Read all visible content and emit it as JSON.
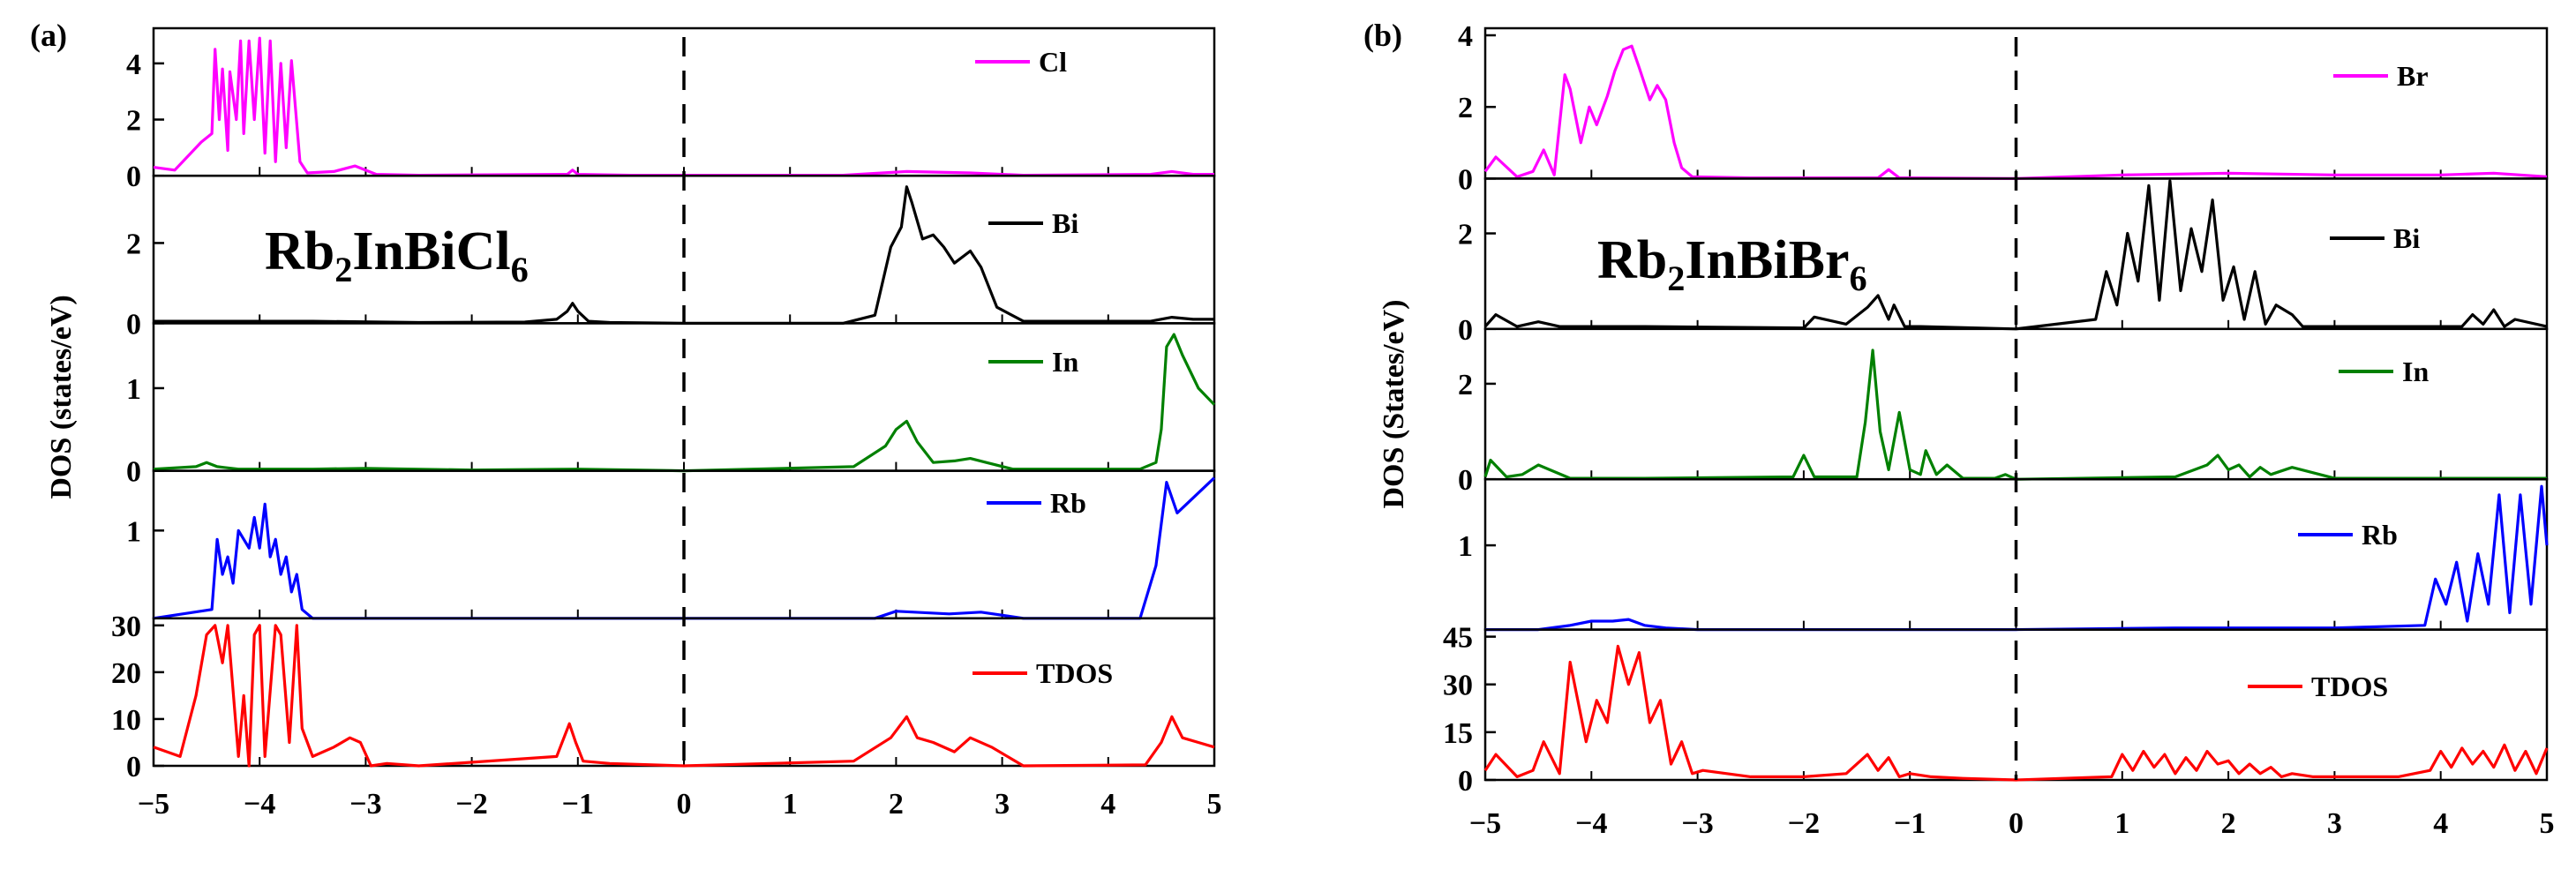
{
  "chart_data": [
    {
      "type": "line",
      "panel_label": "(a)",
      "compound": {
        "base": "Rb",
        "sub1": "2",
        "mid": "InBiCl",
        "sub2": "6"
      },
      "ylabel": "DOS (states/eV)",
      "xlabel": "",
      "xlim": [
        -5,
        5
      ],
      "xticks": [
        "−5",
        "−4",
        "−3",
        "−2",
        "−1",
        "0",
        "1",
        "2",
        "3",
        "4",
        "5"
      ],
      "fermi_level": 0,
      "subplots": [
        {
          "name": "Cl",
          "color": "#ff00ff",
          "ylim": [
            0,
            5
          ],
          "yticks": [
            "0",
            "2",
            "4"
          ],
          "yticks_values": [
            0,
            2,
            4
          ],
          "x": [
            -5,
            -4.8,
            -4.55,
            -4.45,
            -4.42,
            -4.38,
            -4.35,
            -4.3,
            -4.28,
            -4.22,
            -4.18,
            -4.15,
            -4.1,
            -4.05,
            -4.0,
            -3.95,
            -3.9,
            -3.85,
            -3.8,
            -3.75,
            -3.7,
            -3.62,
            -3.55,
            -3.3,
            -3.1,
            -2.9,
            -2.5,
            -1.1,
            -1.05,
            -1.0,
            -0.5,
            0,
            1.5,
            2.1,
            2.7,
            3.2,
            4.4,
            4.6,
            4.8,
            5
          ],
          "y": [
            0.3,
            0.2,
            1.2,
            1.5,
            4.5,
            2.0,
            3.8,
            0.9,
            3.7,
            2.0,
            4.8,
            1.5,
            4.8,
            2.0,
            4.9,
            0.8,
            4.8,
            0.5,
            4.0,
            1.0,
            4.1,
            0.5,
            0.1,
            0.15,
            0.35,
            0.05,
            0.02,
            0.05,
            0.2,
            0.05,
            0.02,
            0.02,
            0.02,
            0.15,
            0.1,
            0.02,
            0.05,
            0.15,
            0.05,
            0.05
          ]
        },
        {
          "name": "Bi",
          "color": "#000000",
          "ylim": [
            0,
            3.5
          ],
          "yticks": [
            "0",
            "2"
          ],
          "yticks_values": [
            0,
            2
          ],
          "x": [
            -5,
            -4.5,
            -3.5,
            -2.5,
            -1.5,
            -1.2,
            -1.1,
            -1.05,
            -1.0,
            -0.9,
            -0.7,
            0,
            1.5,
            1.8,
            1.95,
            2.05,
            2.1,
            2.15,
            2.25,
            2.35,
            2.45,
            2.55,
            2.7,
            2.8,
            2.95,
            3.2,
            4.4,
            4.6,
            4.8,
            5
          ],
          "y": [
            0.05,
            0.05,
            0.05,
            0.02,
            0.03,
            0.1,
            0.3,
            0.5,
            0.3,
            0.05,
            0.02,
            0,
            0,
            0.2,
            1.9,
            2.4,
            3.4,
            3.0,
            2.1,
            2.2,
            1.9,
            1.5,
            1.8,
            1.4,
            0.4,
            0.05,
            0.05,
            0.15,
            0.1,
            0.1
          ]
        },
        {
          "name": "In",
          "color": "#008000",
          "ylim": [
            0,
            1.7
          ],
          "yticks": [
            "0",
            "1"
          ],
          "yticks_values": [
            0,
            1
          ],
          "x": [
            -5,
            -4.6,
            -4.5,
            -4.4,
            -4.2,
            -3.5,
            -3.0,
            -2.0,
            -1.0,
            0,
            1.6,
            1.9,
            2.0,
            2.1,
            2.2,
            2.35,
            2.55,
            2.7,
            2.85,
            3.1,
            3.3,
            4.3,
            4.45,
            4.5,
            4.55,
            4.62,
            4.7,
            4.85,
            5
          ],
          "y": [
            0.02,
            0.05,
            0.1,
            0.05,
            0.02,
            0.02,
            0.03,
            0.01,
            0.02,
            0,
            0.05,
            0.3,
            0.5,
            0.6,
            0.35,
            0.1,
            0.12,
            0.15,
            0.1,
            0.02,
            0.02,
            0.02,
            0.1,
            0.5,
            1.5,
            1.65,
            1.4,
            1.0,
            0.8
          ]
        },
        {
          "name": "Rb",
          "color": "#0000ff",
          "ylim": [
            0,
            1.6
          ],
          "yticks": [
            "1"
          ],
          "yticks_values": [
            1
          ],
          "x": [
            -5,
            -4.45,
            -4.4,
            -4.35,
            -4.3,
            -4.25,
            -4.2,
            -4.1,
            -4.05,
            -4.0,
            -3.95,
            -3.9,
            -3.85,
            -3.8,
            -3.75,
            -3.7,
            -3.65,
            -3.6,
            -3.5,
            0,
            1.8,
            2.0,
            2.5,
            2.8,
            3.2,
            4.3,
            4.45,
            4.55,
            4.65,
            5
          ],
          "y": [
            0,
            0.1,
            0.9,
            0.5,
            0.7,
            0.4,
            1.0,
            0.8,
            1.15,
            0.8,
            1.3,
            0.7,
            0.9,
            0.5,
            0.7,
            0.3,
            0.5,
            0.1,
            0,
            0,
            0,
            0.08,
            0.05,
            0.07,
            0,
            0,
            0.6,
            1.55,
            1.2,
            1.6
          ]
        },
        {
          "name": "TDOS",
          "color": "#ff0000",
          "ylim": [
            0,
            30
          ],
          "yticks": [
            "0",
            "10",
            "20",
            "30"
          ],
          "yticks_values": [
            0,
            10,
            20,
            30
          ],
          "x": [
            -5,
            -4.75,
            -4.6,
            -4.5,
            -4.42,
            -4.35,
            -4.3,
            -4.2,
            -4.15,
            -4.1,
            -4.05,
            -4.0,
            -3.95,
            -3.85,
            -3.8,
            -3.72,
            -3.65,
            -3.6,
            -3.5,
            -3.3,
            -3.15,
            -3.05,
            -2.95,
            -2.8,
            -2.5,
            -1.2,
            -1.08,
            -1.02,
            -0.95,
            -0.7,
            -0.3,
            0,
            1.6,
            1.95,
            2.1,
            2.2,
            2.35,
            2.55,
            2.7,
            2.9,
            3.2,
            4.35,
            4.5,
            4.6,
            4.7,
            4.85,
            5
          ],
          "y": [
            4,
            2,
            15,
            28,
            30,
            22,
            30,
            2,
            15,
            0,
            28,
            30,
            2,
            30,
            28,
            5,
            30,
            8,
            2,
            4,
            6,
            5,
            0,
            0.5,
            0,
            2,
            9,
            5,
            1,
            0.5,
            0.2,
            0,
            1,
            6,
            10.5,
            6,
            5,
            3,
            6,
            4,
            0,
            0.2,
            5,
            10.5,
            6,
            5,
            4
          ]
        }
      ],
      "labels": {
        "cl": "Cl",
        "bi": "Bi",
        "in": "In",
        "rb": "Rb",
        "tdos": "TDOS"
      }
    },
    {
      "type": "line",
      "panel_label": "(b)",
      "compound": {
        "base": "Rb",
        "sub1": "2",
        "mid": "InBiBr",
        "sub2": "6"
      },
      "ylabel": "DOS (States/eV)",
      "xlabel": "",
      "xlim": [
        -5,
        5
      ],
      "xticks": [
        "−5",
        "−4",
        "−3",
        "−2",
        "−1",
        "0",
        "1",
        "2",
        "3",
        "4",
        "5"
      ],
      "fermi_level": 0,
      "subplots": [
        {
          "name": "Br",
          "color": "#ff00ff",
          "ylim": [
            0,
            4
          ],
          "yticks": [
            "0",
            "2",
            "4"
          ],
          "yticks_values": [
            0,
            2,
            4
          ],
          "x": [
            -5,
            -4.9,
            -4.7,
            -4.55,
            -4.45,
            -4.35,
            -4.25,
            -4.2,
            -4.1,
            -4.02,
            -3.95,
            -3.85,
            -3.78,
            -3.7,
            -3.62,
            -3.55,
            -3.45,
            -3.38,
            -3.3,
            -3.22,
            -3.15,
            -3.05,
            -2.5,
            -1.3,
            -1.2,
            -1.1,
            0,
            1.0,
            2.0,
            3.0,
            4.0,
            4.5,
            5
          ],
          "y": [
            0.2,
            0.6,
            0.05,
            0.2,
            0.8,
            0.1,
            2.9,
            2.5,
            1.0,
            2.0,
            1.5,
            2.3,
            3.0,
            3.6,
            3.7,
            3.1,
            2.2,
            2.6,
            2.2,
            1.0,
            0.3,
            0.05,
            0.02,
            0.02,
            0.25,
            0.02,
            0,
            0.1,
            0.15,
            0.1,
            0.1,
            0.15,
            0.05
          ]
        },
        {
          "name": "Bi",
          "color": "#000000",
          "ylim": [
            0,
            3
          ],
          "yticks": [
            "0",
            "2"
          ],
          "yticks_values": [
            0,
            2
          ],
          "x": [
            -5,
            -4.9,
            -4.7,
            -4.5,
            -4.3,
            -3.5,
            -2.0,
            -1.9,
            -1.6,
            -1.4,
            -1.3,
            -1.2,
            -1.15,
            -1.05,
            -0.9,
            0,
            0.75,
            0.85,
            0.95,
            1.05,
            1.15,
            1.25,
            1.35,
            1.45,
            1.55,
            1.65,
            1.75,
            1.85,
            1.95,
            2.05,
            2.15,
            2.25,
            2.35,
            2.45,
            2.6,
            2.7,
            4.2,
            4.3,
            4.4,
            4.5,
            4.6,
            4.7,
            5
          ],
          "y": [
            0.05,
            0.3,
            0.05,
            0.15,
            0.05,
            0.05,
            0.02,
            0.25,
            0.1,
            0.45,
            0.7,
            0.2,
            0.5,
            0.05,
            0.05,
            0,
            0.2,
            1.2,
            0.5,
            2.0,
            1.0,
            3.0,
            0.6,
            3.1,
            0.8,
            2.1,
            1.2,
            2.7,
            0.6,
            1.3,
            0.2,
            1.2,
            0.1,
            0.5,
            0.3,
            0.05,
            0.05,
            0.3,
            0.1,
            0.4,
            0.05,
            0.2,
            0.05
          ]
        },
        {
          "name": "In",
          "color": "#008000",
          "ylim": [
            0,
            3
          ],
          "yticks": [
            "0",
            "2"
          ],
          "yticks_values": [
            0,
            2
          ],
          "x": [
            -5,
            -4.95,
            -4.8,
            -4.65,
            -4.5,
            -4.2,
            -3.5,
            -2.1,
            -2.0,
            -1.9,
            -1.5,
            -1.42,
            -1.35,
            -1.28,
            -1.2,
            -1.1,
            -1.0,
            -0.9,
            -0.85,
            -0.75,
            -0.65,
            -0.5,
            -0.2,
            -0.1,
            0,
            1.5,
            1.8,
            1.9,
            2.0,
            2.1,
            2.2,
            2.3,
            2.4,
            2.6,
            3.0,
            5
          ],
          "y": [
            0.05,
            0.4,
            0.05,
            0.1,
            0.3,
            0.02,
            0.02,
            0.05,
            0.5,
            0.05,
            0.05,
            1.2,
            2.7,
            1.0,
            0.2,
            1.4,
            0.2,
            0.1,
            0.6,
            0.1,
            0.3,
            0.02,
            0.02,
            0.1,
            0,
            0.05,
            0.3,
            0.5,
            0.2,
            0.3,
            0.05,
            0.25,
            0.1,
            0.25,
            0.02,
            0.02
          ]
        },
        {
          "name": "Rb",
          "color": "#0000ff",
          "ylim": [
            0,
            1.7
          ],
          "yticks": [
            "1"
          ],
          "yticks_values": [
            1
          ],
          "x": [
            -5,
            -4.5,
            -4.2,
            -4.0,
            -3.8,
            -3.65,
            -3.5,
            -3.3,
            -3.0,
            0,
            1.5,
            3.0,
            3.85,
            3.95,
            4.05,
            4.15,
            4.25,
            4.35,
            4.45,
            4.55,
            4.65,
            4.75,
            4.85,
            4.95,
            5
          ],
          "y": [
            0,
            0,
            0.05,
            0.1,
            0.1,
            0.12,
            0.05,
            0.02,
            0,
            0,
            0.02,
            0.02,
            0.05,
            0.6,
            0.3,
            0.8,
            0.1,
            0.9,
            0.3,
            1.6,
            0.2,
            1.6,
            0.3,
            1.7,
            1.0
          ]
        },
        {
          "name": "TDOS",
          "color": "#ff0000",
          "ylim": [
            0,
            45
          ],
          "yticks": [
            "0",
            "15",
            "30",
            "45"
          ],
          "yticks_values": [
            0,
            15,
            30,
            45
          ],
          "x": [
            -5,
            -4.9,
            -4.7,
            -4.55,
            -4.45,
            -4.3,
            -4.2,
            -4.05,
            -3.95,
            -3.85,
            -3.75,
            -3.65,
            -3.55,
            -3.45,
            -3.35,
            -3.25,
            -3.15,
            -3.05,
            -2.95,
            -2.5,
            -2.0,
            -1.6,
            -1.4,
            -1.3,
            -1.2,
            -1.1,
            -1.0,
            -0.8,
            -0.5,
            0,
            0.9,
            1.0,
            1.1,
            1.2,
            1.3,
            1.4,
            1.5,
            1.6,
            1.7,
            1.8,
            1.9,
            2.0,
            2.1,
            2.2,
            2.3,
            2.4,
            2.5,
            2.6,
            2.8,
            3.6,
            3.9,
            4.0,
            4.1,
            4.2,
            4.3,
            4.4,
            4.5,
            4.6,
            4.7,
            4.8,
            4.9,
            5
          ],
          "y": [
            3,
            8,
            1,
            3,
            12,
            2,
            37,
            12,
            25,
            18,
            42,
            30,
            40,
            18,
            25,
            5,
            12,
            2,
            3,
            1,
            1,
            2,
            8,
            3,
            7,
            1,
            2,
            1,
            0.5,
            0,
            1,
            8,
            3,
            9,
            4,
            8,
            2,
            7,
            3,
            9,
            5,
            6,
            2,
            5,
            2,
            4,
            1,
            2,
            1,
            1,
            3,
            9,
            4,
            10,
            5,
            9,
            4,
            11,
            3,
            9,
            2,
            10
          ]
        }
      ],
      "labels": {
        "br": "Br",
        "bi": "Bi",
        "in": "In",
        "rb": "Rb",
        "tdos": "TDOS"
      }
    }
  ]
}
